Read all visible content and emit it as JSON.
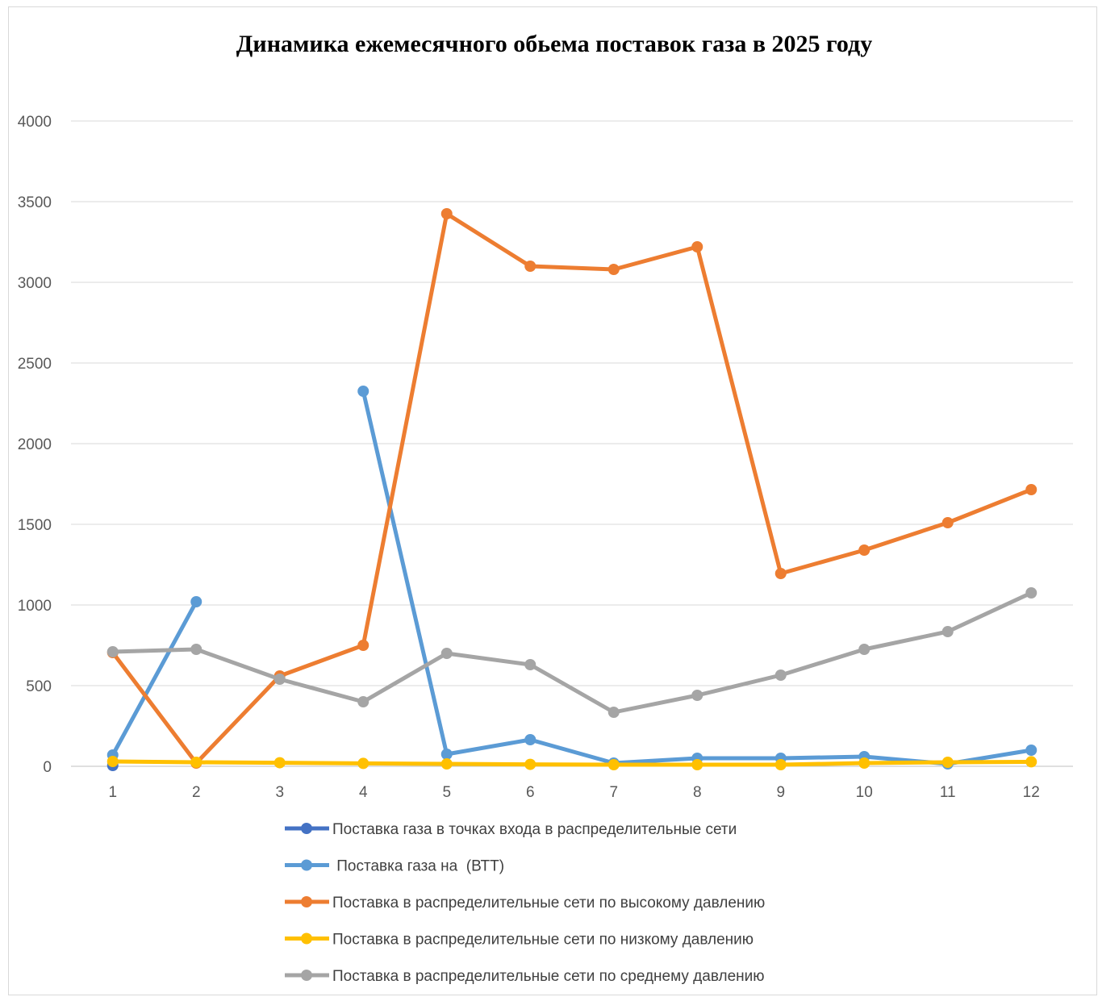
{
  "chart_data": {
    "type": "line",
    "title": "Динамика ежемесячного обьема поставок газа в 2025 году",
    "xlabel": "",
    "ylabel": "",
    "categories": [
      "1",
      "2",
      "3",
      "4",
      "5",
      "6",
      "7",
      "8",
      "9",
      "10",
      "11",
      "12"
    ],
    "ylim": [
      0,
      4000
    ],
    "y_ticks": [
      "0",
      "500",
      "1000",
      "1500",
      "2000",
      "2500",
      "3000",
      "3500",
      "4000"
    ],
    "grid": true,
    "legend_position": "bottom",
    "series": [
      {
        "name": "Поставка газа в точках входа в распределительные сети",
        "color": "#4472c4",
        "values": [
          5,
          null,
          null,
          null,
          null,
          null,
          null,
          null,
          null,
          null,
          null,
          null
        ]
      },
      {
        "name": " Поставка газа на  (ВТТ)",
        "color": "#5b9bd5",
        "values": [
          70,
          1020,
          null,
          2325,
          75,
          165,
          20,
          50,
          50,
          60,
          15,
          100
        ]
      },
      {
        "name": "Поставка в распределительные сети по высокому давлению",
        "color": "#ed7d31",
        "values": [
          705,
          20,
          560,
          750,
          3425,
          3100,
          3080,
          3220,
          1195,
          1340,
          1510,
          1715
        ]
      },
      {
        "name": "Поставка в распределительные сети по низкому давлению",
        "color": "#ffc000",
        "values": [
          30,
          25,
          22,
          18,
          15,
          12,
          10,
          10,
          10,
          20,
          25,
          28
        ]
      },
      {
        "name": "Поставка в распределительные сети по среднему давлению",
        "color": "#a5a5a5",
        "values": [
          710,
          725,
          540,
          400,
          700,
          630,
          335,
          440,
          565,
          725,
          835,
          1075
        ]
      }
    ]
  }
}
